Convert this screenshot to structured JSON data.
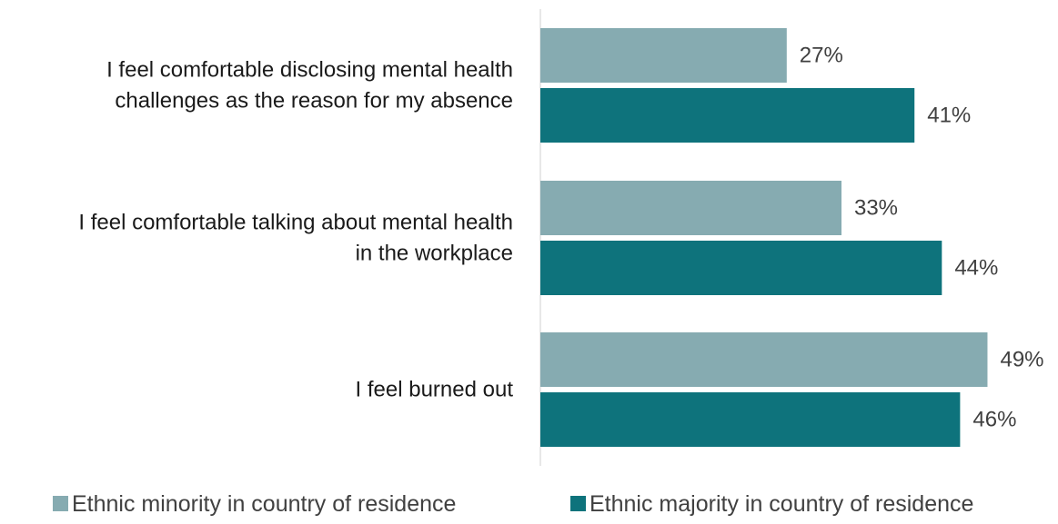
{
  "chart_data": {
    "type": "bar",
    "orientation": "horizontal",
    "categories": [
      [
        "I feel comfortable disclosing mental health",
        "challenges as the reason for my absence"
      ],
      [
        "I feel comfortable talking about mental health",
        "in the workplace"
      ],
      [
        "I feel burned out"
      ]
    ],
    "series": [
      {
        "name": "Ethnic minority in country of residence",
        "color": "#86abb1",
        "values": [
          27,
          33,
          49
        ],
        "labels": [
          "27%",
          "33%",
          "49%"
        ]
      },
      {
        "name": "Ethnic majority in country of residence",
        "color": "#0e737c",
        "values": [
          41,
          44,
          46
        ],
        "labels": [
          "41%",
          "44%",
          "46%"
        ]
      }
    ],
    "xlim": [
      0,
      100
    ],
    "grid": false,
    "legend": "bottom",
    "value_format": "percent"
  }
}
